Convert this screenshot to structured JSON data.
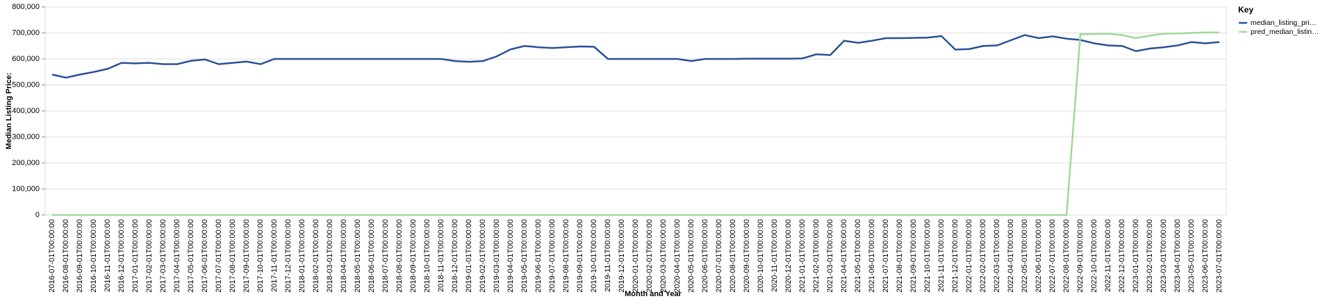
{
  "chart_data": {
    "type": "line",
    "x_label": "Month and Year",
    "y_label": "Median Listing Price:",
    "legend_title": "Key",
    "legend": "right",
    "grid": true,
    "categories": [
      "2016-07-01T00:00:00",
      "2016-08-01T00:00:00",
      "2016-09-01T00:00:00",
      "2016-10-01T00:00:00",
      "2016-11-01T00:00:00",
      "2016-12-01T00:00:00",
      "2017-01-01T00:00:00",
      "2017-02-01T00:00:00",
      "2017-03-01T00:00:00",
      "2017-04-01T00:00:00",
      "2017-05-01T00:00:00",
      "2017-06-01T00:00:00",
      "2017-07-01T00:00:00",
      "2017-08-01T00:00:00",
      "2017-09-01T00:00:00",
      "2017-10-01T00:00:00",
      "2017-11-01T00:00:00",
      "2017-12-01T00:00:00",
      "2018-01-01T00:00:00",
      "2018-02-01T00:00:00",
      "2018-03-01T00:00:00",
      "2018-04-01T00:00:00",
      "2018-05-01T00:00:00",
      "2018-06-01T00:00:00",
      "2018-07-01T00:00:00",
      "2018-08-01T00:00:00",
      "2018-09-01T00:00:00",
      "2018-10-01T00:00:00",
      "2018-11-01T00:00:00",
      "2018-12-01T00:00:00",
      "2019-01-01T00:00:00",
      "2019-02-01T00:00:00",
      "2019-03-01T00:00:00",
      "2019-04-01T00:00:00",
      "2019-05-01T00:00:00",
      "2019-06-01T00:00:00",
      "2019-07-01T00:00:00",
      "2019-08-01T00:00:00",
      "2019-09-01T00:00:00",
      "2019-10-01T00:00:00",
      "2019-11-01T00:00:00",
      "2019-12-01T00:00:00",
      "2020-01-01T00:00:00",
      "2020-02-01T00:00:00",
      "2020-03-01T00:00:00",
      "2020-04-01T00:00:00",
      "2020-05-01T00:00:00",
      "2020-06-01T00:00:00",
      "2020-07-01T00:00:00",
      "2020-08-01T00:00:00",
      "2020-09-01T00:00:00",
      "2020-10-01T00:00:00",
      "2020-11-01T00:00:00",
      "2020-12-01T00:00:00",
      "2021-01-01T00:00:00",
      "2021-02-01T00:00:00",
      "2021-03-01T00:00:00",
      "2021-04-01T00:00:00",
      "2021-05-01T00:00:00",
      "2021-06-01T00:00:00",
      "2021-07-01T00:00:00",
      "2021-08-01T00:00:00",
      "2021-09-01T00:00:00",
      "2021-10-01T00:00:00",
      "2021-11-01T00:00:00",
      "2021-12-01T00:00:00",
      "2022-01-01T00:00:00",
      "2022-02-01T00:00:00",
      "2022-03-01T00:00:00",
      "2022-04-01T00:00:00",
      "2022-05-01T00:00:00",
      "2022-06-01T00:00:00",
      "2022-07-01T00:00:00",
      "2022-08-01T00:00:00",
      "2022-09-01T00:00:00",
      "2022-10-01T00:00:00",
      "2022-11-01T00:00:00",
      "2022-12-01T00:00:00",
      "2023-01-01T00:00:00",
      "2023-02-01T00:00:00",
      "2023-03-01T00:00:00",
      "2023-04-01T00:00:00",
      "2023-05-01T00:00:00",
      "2023-06-01T00:00:00",
      "2023-07-01T00:00:00"
    ],
    "series": [
      {
        "name": "median_listing_pri…",
        "color": "#2a4f97",
        "values": [
          540000,
          528000,
          540000,
          550000,
          562000,
          585000,
          583000,
          585000,
          580000,
          580000,
          593000,
          598000,
          580000,
          585000,
          590000,
          580000,
          600000,
          600000,
          600000,
          600000,
          600000,
          600000,
          600000,
          600000,
          600000,
          600000,
          600000,
          600000,
          600000,
          592000,
          589000,
          592000,
          610000,
          637000,
          650000,
          645000,
          642000,
          645000,
          648000,
          647000,
          600000,
          600000,
          600000,
          600000,
          600000,
          600000,
          592000,
          600000,
          600000,
          600000,
          601000,
          601000,
          601000,
          601000,
          602000,
          618000,
          615000,
          670000,
          662000,
          670000,
          680000,
          680000,
          681000,
          682000,
          688000,
          636000,
          638000,
          650000,
          652000,
          672000,
          692000,
          680000,
          687000,
          678000,
          673000,
          660000,
          652000,
          650000,
          630000,
          640000,
          645000,
          652000,
          665000,
          660000,
          665000
        ]
      },
      {
        "name": "pred_median_listin…",
        "color": "#9fd89a",
        "values": [
          0,
          0,
          0,
          0,
          0,
          0,
          0,
          0,
          0,
          0,
          0,
          0,
          0,
          0,
          0,
          0,
          0,
          0,
          0,
          0,
          0,
          0,
          0,
          0,
          0,
          0,
          0,
          0,
          0,
          0,
          0,
          0,
          0,
          0,
          0,
          0,
          0,
          0,
          0,
          0,
          0,
          0,
          0,
          0,
          0,
          0,
          0,
          0,
          0,
          0,
          0,
          0,
          0,
          0,
          0,
          0,
          0,
          0,
          0,
          0,
          0,
          0,
          0,
          0,
          0,
          0,
          0,
          0,
          0,
          0,
          0,
          0,
          0,
          0,
          695000,
          696000,
          697000,
          692000,
          680000,
          690000,
          697000,
          698000,
          700000,
          702000,
          702000
        ]
      }
    ],
    "ylim": [
      0,
      800000
    ],
    "yticks": [
      0,
      {
        "value": 100000,
        "label": "100,000"
      },
      {
        "value": 200000,
        "label": "200,000"
      },
      {
        "value": 300000,
        "label": "300,000"
      },
      {
        "value": 400000,
        "label": "400,000"
      },
      {
        "value": 500000,
        "label": "500,000"
      },
      {
        "value": 600000,
        "label": "600,000"
      },
      {
        "value": 700000,
        "label": "700,000"
      },
      {
        "value": 800000,
        "label": "800,000"
      }
    ]
  }
}
